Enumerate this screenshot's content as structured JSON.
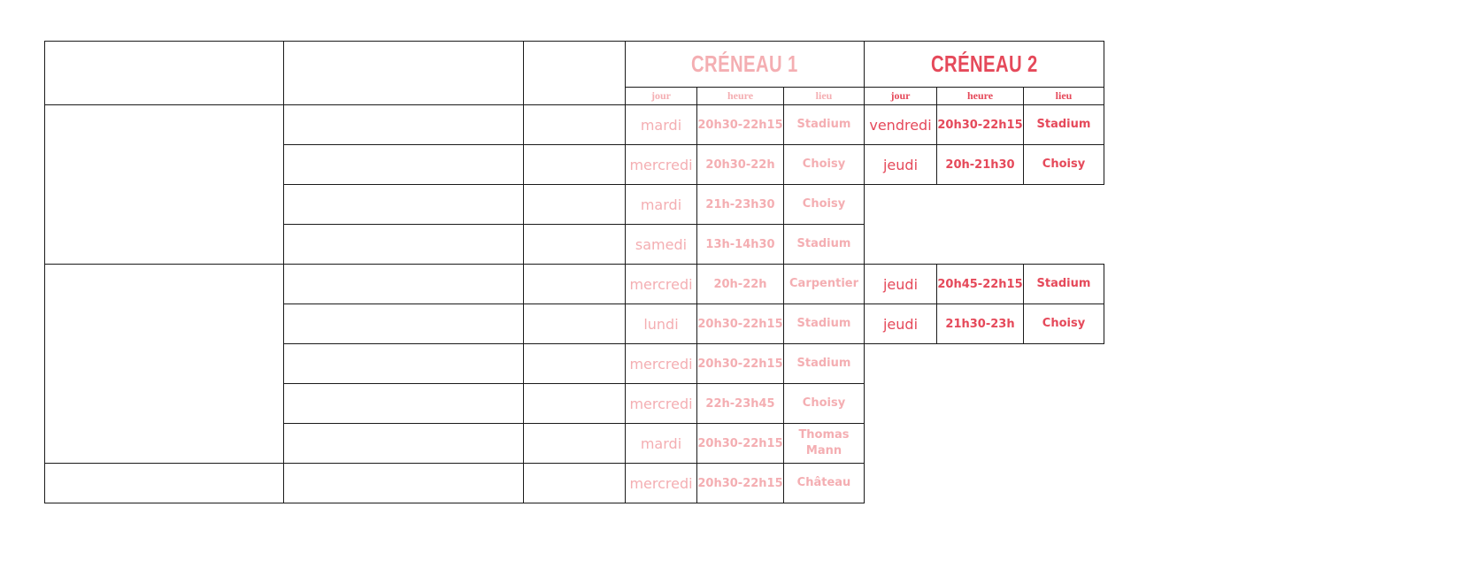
{
  "colors": {
    "creneau1": "#f4aeb2",
    "creneau2": "#e5495a",
    "border": "#1a1a1a"
  },
  "headers": {
    "creneau1": "CRÉNEAU 1",
    "creneau2": "CRÉNEAU 2",
    "sub": [
      "jour",
      "heure",
      "lieu"
    ]
  },
  "rows": [
    {
      "c1": [
        "mardi",
        "20h30-22h15",
        "Stadium"
      ],
      "c2": [
        "vendredi",
        "20h30-22h15",
        "Stadium"
      ]
    },
    {
      "c1": [
        "mercredi",
        "20h30-22h",
        "Choisy"
      ],
      "c2": [
        "jeudi",
        "20h-21h30",
        "Choisy"
      ]
    },
    {
      "c1": [
        "mardi",
        "21h-23h30",
        "Choisy"
      ],
      "c2": null
    },
    {
      "c1": [
        "samedi",
        "13h-14h30",
        "Stadium"
      ],
      "c2": null
    },
    {
      "c1": [
        "mercredi",
        "20h-22h",
        "Carpentier"
      ],
      "c2": [
        "jeudi",
        "20h45-22h15",
        "Stadium"
      ]
    },
    {
      "c1": [
        "lundi",
        "20h30-22h15",
        "Stadium"
      ],
      "c2": [
        "jeudi",
        "21h30-23h",
        "Choisy"
      ]
    },
    {
      "c1": [
        "mercredi",
        "20h30-22h15",
        "Stadium"
      ],
      "c2": null
    },
    {
      "c1": [
        "mercredi",
        "22h-23h45",
        "Choisy"
      ],
      "c2": null
    },
    {
      "c1": [
        "mardi",
        "20h30-22h15",
        "Thomas Mann"
      ],
      "c2": null
    },
    {
      "c1": [
        "mercredi",
        "20h30-22h15",
        "Château"
      ],
      "c2": null
    }
  ]
}
